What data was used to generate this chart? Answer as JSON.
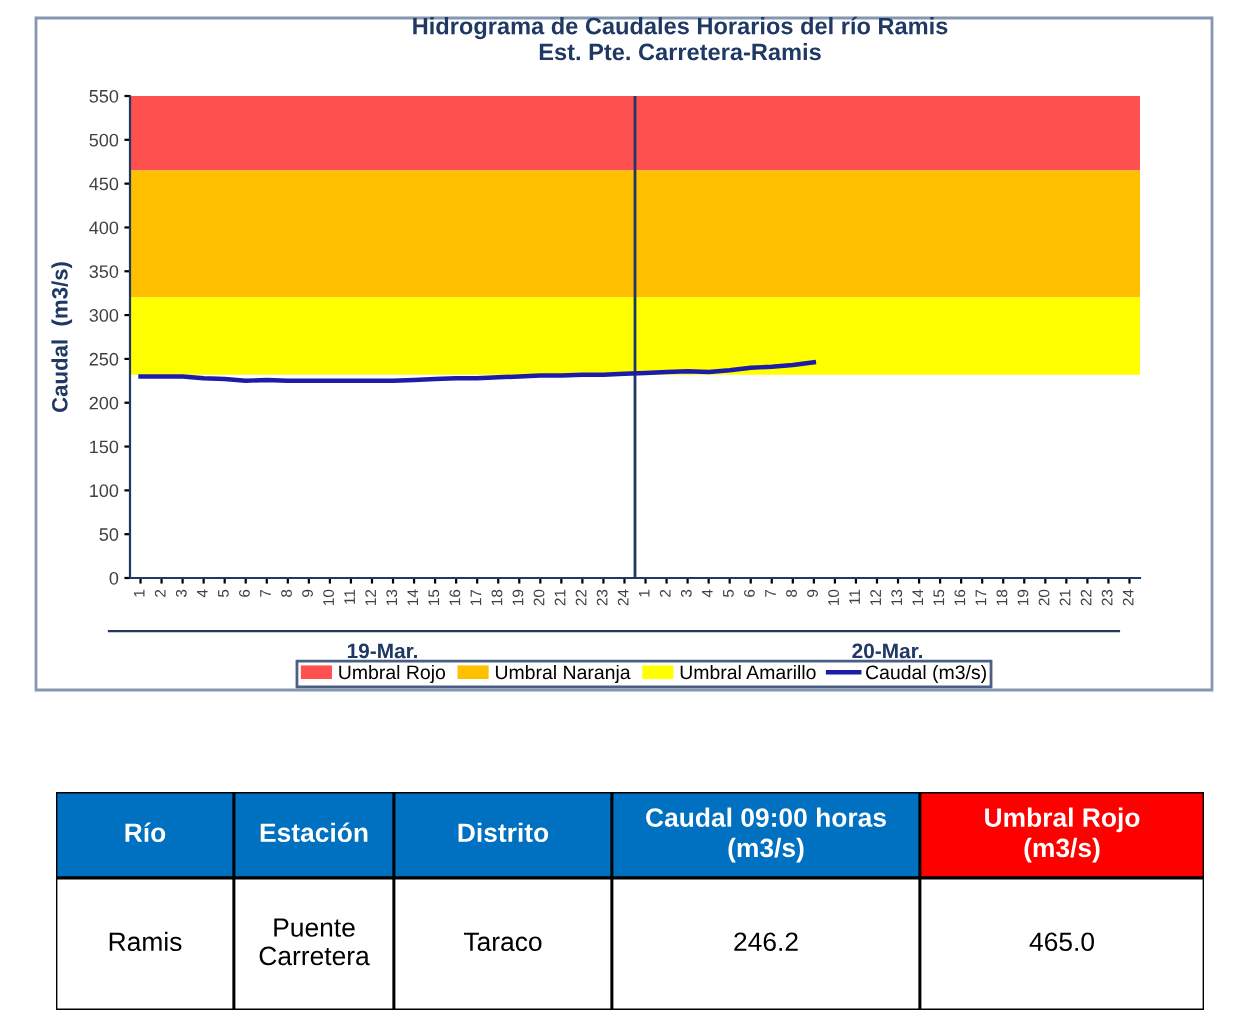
{
  "chart_data": [
    {
      "type": "line",
      "title": "Hidrograma de Caudales Horarios del río Ramis",
      "subtitle": "Est. Pte. Carretera-Ramis",
      "ylabel": "Caudal  (m3/s)",
      "categories": [
        "1",
        "2",
        "3",
        "4",
        "5",
        "6",
        "7",
        "8",
        "9",
        "10",
        "11",
        "12",
        "13",
        "14",
        "15",
        "16",
        "17",
        "18",
        "19",
        "20",
        "21",
        "22",
        "23",
        "24",
        "1",
        "2",
        "3",
        "4",
        "5",
        "6",
        "7",
        "8",
        "9",
        "10",
        "11",
        "12",
        "13",
        "14",
        "15",
        "16",
        "17",
        "18",
        "19",
        "20",
        "21",
        "22",
        "23",
        "24"
      ],
      "series": [
        {
          "name": "Caudal (m3/s)",
          "color": "#1c1ca8",
          "values": [
            230,
            230,
            230,
            228,
            227,
            225,
            226,
            225,
            225,
            225,
            225,
            225,
            225,
            226,
            227,
            228,
            228,
            229,
            230,
            231,
            231,
            232,
            232,
            233,
            234,
            235,
            236,
            235,
            237,
            240,
            241,
            243,
            246.2,
            null,
            null,
            null,
            null,
            null,
            null,
            null,
            null,
            null,
            null,
            null,
            null,
            null,
            null,
            null
          ]
        }
      ],
      "bands": [
        {
          "axis": "y",
          "from": 465,
          "to": 550,
          "label": "Umbral Rojo",
          "color": "#ff5050"
        },
        {
          "axis": "y",
          "from": 320,
          "to": 465,
          "label": "Umbral Naranja",
          "color": "#ffc000"
        },
        {
          "axis": "y",
          "from": 232,
          "to": 320,
          "label": "Umbral Amarillo",
          "color": "#ffff00"
        }
      ],
      "ref_lines": [
        {
          "axis": "x",
          "value": "24",
          "color": "#1f3864"
        }
      ],
      "annotations": [
        "19-Mar.",
        "20-Mar."
      ],
      "ylim": [
        0,
        550
      ],
      "yticks": [
        0,
        50,
        100,
        150,
        200,
        250,
        300,
        350,
        400,
        450,
        500,
        550
      ],
      "grid": false,
      "legend": "bottom",
      "marker": "none",
      "line_style": "solid"
    },
    {
      "type": "other",
      "categories": [
        "Río",
        "Estación",
        "Distrito",
        "Caudal 09:00 horas\n(m3/s)",
        "Umbral Rojo\n(m3/s)"
      ],
      "colors": [
        "#0070c0",
        "#0070c0",
        "#0070c0",
        "#0070c0",
        "#ff0000"
      ],
      "annotations": [
        "Ramis",
        "Puente\nCarretera",
        "Taraco",
        "246.2",
        "465.0"
      ]
    }
  ]
}
